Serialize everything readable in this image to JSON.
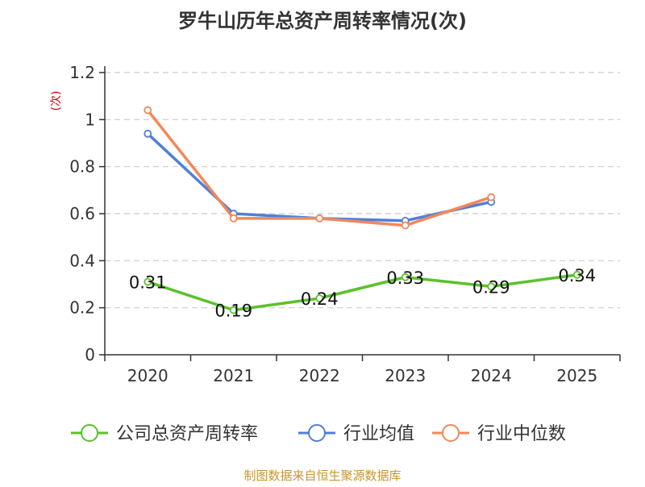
{
  "chart_data": {
    "type": "line",
    "title": "罗牛山历年总资产周转率情况(次)",
    "ylabel": "(次)",
    "xlabel": "",
    "categories": [
      "2020",
      "2021",
      "2022",
      "2023",
      "2024",
      "2025"
    ],
    "ylim": [
      0,
      1.2
    ],
    "yticks": [
      0,
      0.2,
      0.4,
      0.6,
      0.8,
      1,
      1.2
    ],
    "ytick_labels": [
      "0",
      "0.2",
      "0.4",
      "0.6",
      "0.8",
      "1",
      "1.2"
    ],
    "grid": true,
    "legend_position": "bottom",
    "series": [
      {
        "name": "公司总资产周转率",
        "color": "#5cc12c",
        "values": [
          0.31,
          0.19,
          0.24,
          0.33,
          0.29,
          0.34
        ],
        "labels": [
          "0.31",
          "0.19",
          "0.24",
          "0.33",
          "0.29",
          "0.34"
        ],
        "show_labels": true
      },
      {
        "name": "行业均值",
        "color": "#4f7fd9",
        "values": [
          0.94,
          0.6,
          0.58,
          0.57,
          0.65,
          null
        ],
        "show_labels": false
      },
      {
        "name": "行业中位数",
        "color": "#f2885a",
        "values": [
          1.04,
          0.58,
          0.58,
          0.55,
          0.67,
          null
        ],
        "show_labels": false
      }
    ]
  },
  "source_note": "制图数据来自恒生聚源数据库",
  "colors": {
    "ylabel": "#cc0000",
    "source_note": "#c8962a",
    "axis": "#333333",
    "grid": "#cccccc"
  }
}
